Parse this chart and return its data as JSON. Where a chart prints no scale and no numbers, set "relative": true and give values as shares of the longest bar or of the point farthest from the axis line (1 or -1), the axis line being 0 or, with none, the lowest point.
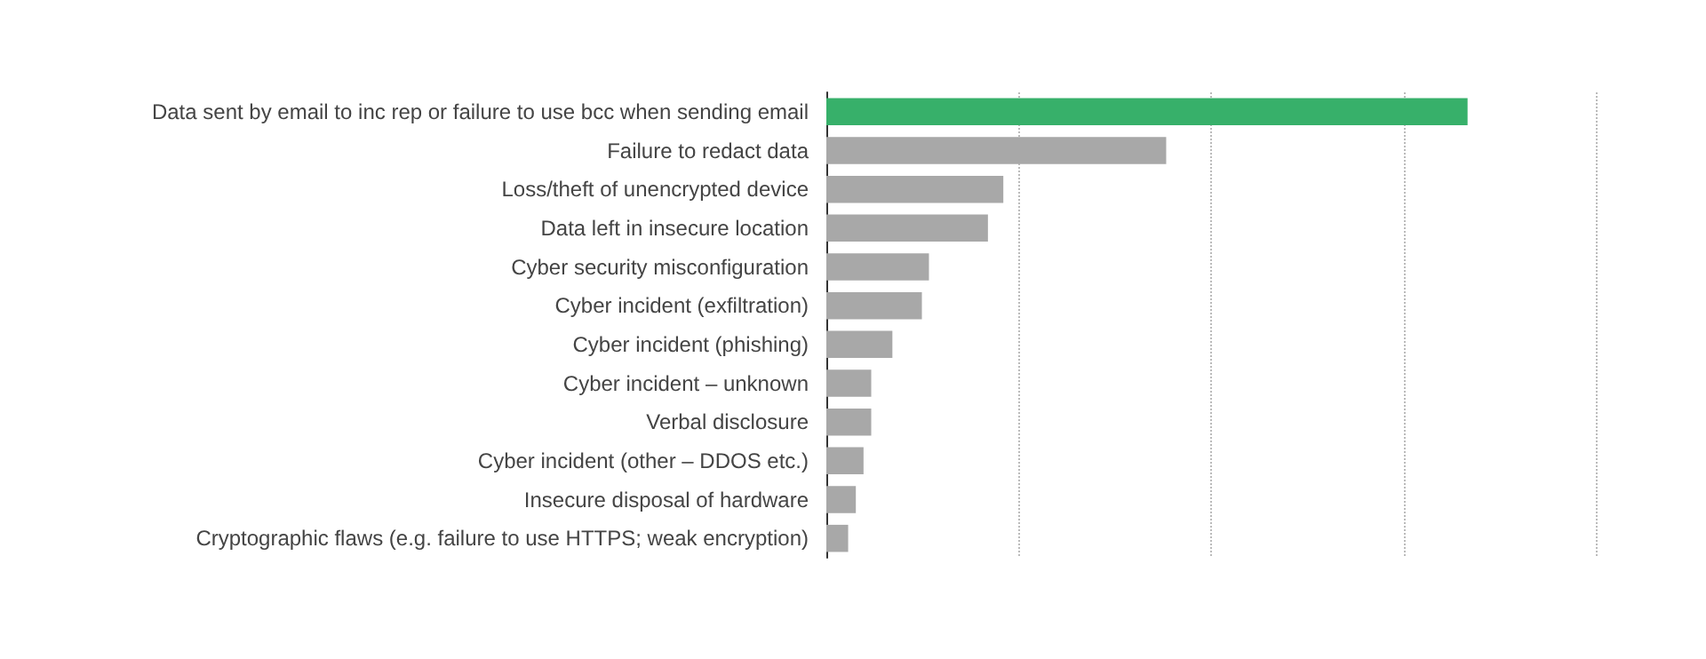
{
  "chart_data": {
    "type": "bar",
    "orientation": "horizontal",
    "relative": true,
    "grid": "x",
    "categories": [
      "Data sent by email to inc rep or failure to use bcc when sending email",
      "Failure to redact data",
      "Loss/theft of unencrypted device",
      "Data left in insecure location",
      "Cyber security misconfiguration",
      "Cyber incident (exfiltration)",
      "Cyber incident (phishing)",
      "Cyber incident – unknown",
      "Verbal disclosure",
      "Cyber incident (other – DDOS etc.)",
      "Insecure disposal of hardware",
      "Cryptographic flaws (e.g. failure to use HTTPS; weak encryption)"
    ],
    "values": [
      1,
      0.53,
      0.276,
      0.252,
      0.16,
      0.149,
      0.103,
      0.07,
      0.07,
      0.058,
      0.046,
      0.034
    ],
    "colors": [
      "#37b06a",
      "#a8a8a8",
      "#a8a8a8",
      "#a8a8a8",
      "#a8a8a8",
      "#a8a8a8",
      "#a8a8a8",
      "#a8a8a8",
      "#a8a8a8",
      "#a8a8a8",
      "#a8a8a8",
      "#a8a8a8"
    ]
  }
}
